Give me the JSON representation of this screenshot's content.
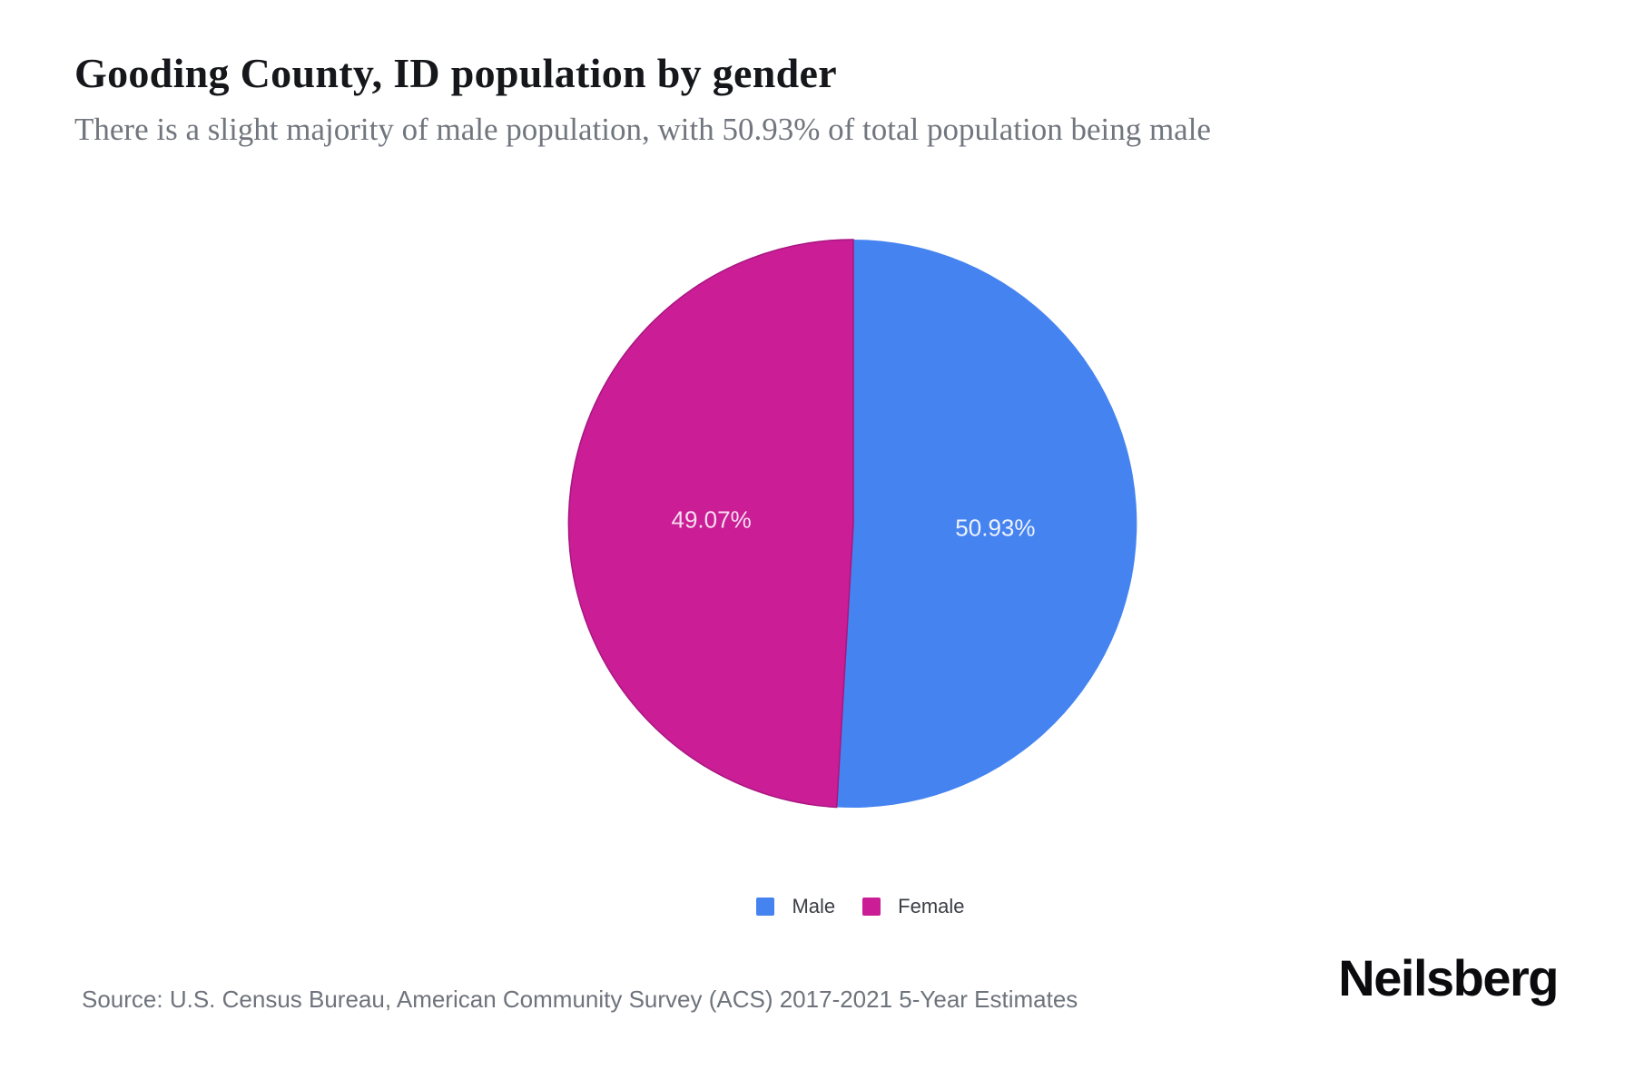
{
  "header": {
    "title": "Gooding County, ID population by gender",
    "subtitle": "There is a slight majority of male population, with 50.93% of total population being male"
  },
  "footer": {
    "source": "Source: U.S. Census Bureau, American Community Survey (ACS) 2017-2021 5-Year Estimates",
    "brand": "Neilsberg"
  },
  "chart_data": {
    "type": "pie",
    "title": "Gooding County, ID population by gender",
    "labels": [
      "Male",
      "Female"
    ],
    "values": [
      50.93,
      49.07
    ],
    "value_labels": [
      "50.93%",
      "49.07%"
    ],
    "colors": [
      "#4583f0",
      "#ca1d96"
    ],
    "label_colors": [
      "#eef3fd",
      "#f6dff0"
    ],
    "slice_strokes": [
      null,
      "#a81680"
    ],
    "start_angle_deg": 0,
    "direction": "clockwise",
    "legend_position": "bottom"
  }
}
